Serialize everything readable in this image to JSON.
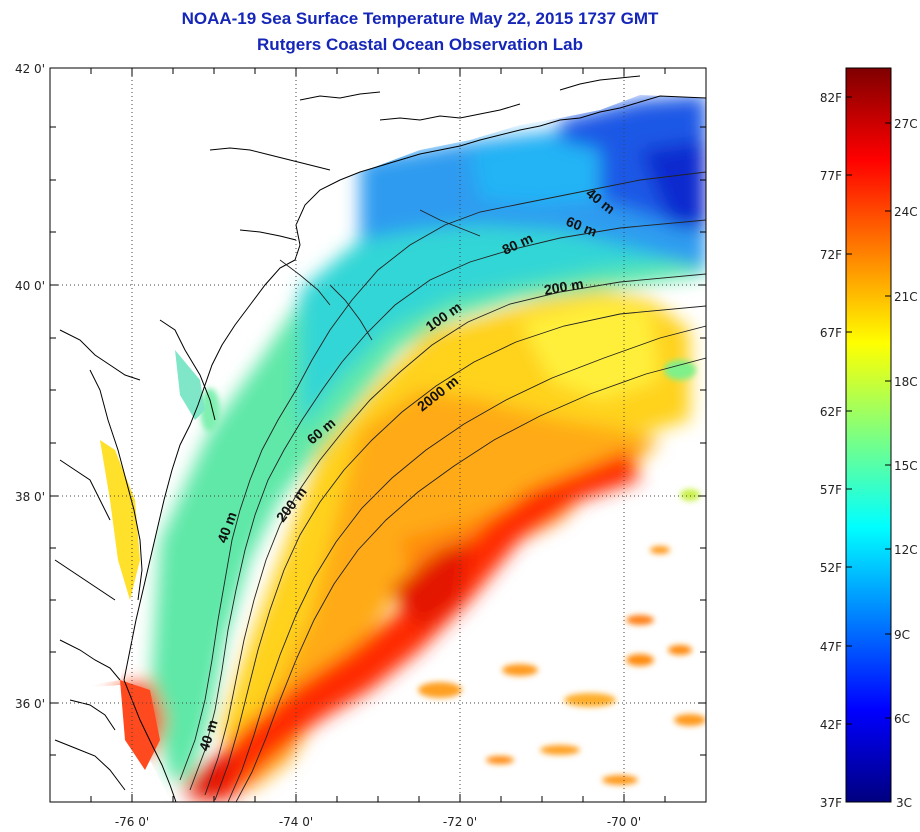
{
  "header": {
    "title": "NOAA-19 Sea Surface Temperature May 22, 2015 1737 GMT",
    "subtitle": "Rutgers Coastal Ocean Observation Lab"
  },
  "axes": {
    "longitude_ticks": [
      "-76 0'",
      "-74 0'",
      "-72 0'",
      "-70 0'"
    ],
    "latitude_ticks": [
      "42 0'",
      "40 0'",
      "38 0'",
      "36 0'"
    ]
  },
  "depth_contour_labels": [
    "40 m",
    "60 m",
    "80 m",
    "200 m",
    "100 m",
    "2000 m",
    "60 m",
    "200 m",
    "40 m",
    "40 m"
  ],
  "colorbar": {
    "fahrenheit_labels": [
      "82F",
      "77F",
      "72F",
      "67F",
      "62F",
      "57F",
      "52F",
      "47F",
      "42F",
      "37F"
    ],
    "celsius_labels": [
      "27C",
      "24C",
      "21C",
      "18C",
      "15C",
      "12C",
      "9C",
      "6C",
      "3C"
    ],
    "range_f": [
      37,
      84
    ],
    "colors": [
      "#00007f",
      "#0000ff",
      "#007fff",
      "#00ffff",
      "#7fff7f",
      "#ffff00",
      "#ff7f00",
      "#ff0000",
      "#7f0000"
    ]
  },
  "colors": {
    "title": "#1526b8",
    "coast": "#000000"
  }
}
